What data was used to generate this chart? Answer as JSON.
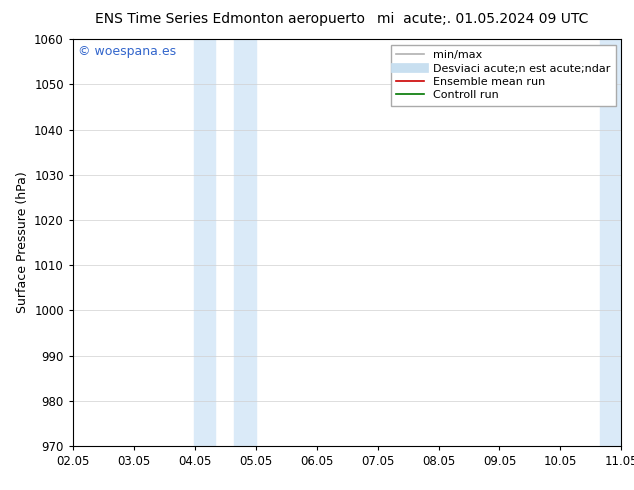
{
  "title_left": "ENS Time Series Edmonton aeropuerto",
  "title_right": "mi  acute;. 01.05.2024 09 UTC",
  "ylabel": "Surface Pressure (hPa)",
  "ylim": [
    970,
    1060
  ],
  "yticks": [
    970,
    980,
    990,
    1000,
    1010,
    1020,
    1030,
    1040,
    1050,
    1060
  ],
  "xtick_labels": [
    "02.05",
    "03.05",
    "04.05",
    "05.05",
    "06.05",
    "07.05",
    "08.05",
    "09.05",
    "10.05",
    "11.05"
  ],
  "n_xticks": 10,
  "xlim": [
    0,
    9
  ],
  "shade_bands": [
    {
      "x_start": 1.98,
      "x_end": 2.33,
      "color": "#daeaf8"
    },
    {
      "x_start": 2.65,
      "x_end": 3.0,
      "color": "#daeaf8"
    },
    {
      "x_start": 8.65,
      "x_end": 9.0,
      "color": "#daeaf8"
    }
  ],
  "watermark_text": "© woespana.es",
  "watermark_color": "#3366cc",
  "legend_items": [
    {
      "label": "min/max",
      "color": "#b0b0b0",
      "lw": 1.2,
      "ls": "-"
    },
    {
      "label": "Desviaci acute;n est acute;ndar",
      "color": "#c8dff0",
      "lw": 7,
      "ls": "-"
    },
    {
      "label": "Ensemble mean run",
      "color": "#cc0000",
      "lw": 1.2,
      "ls": "-"
    },
    {
      "label": "Controll run",
      "color": "#007700",
      "lw": 1.2,
      "ls": "-"
    }
  ],
  "bg_color": "#ffffff",
  "plot_bg_color": "#ffffff",
  "grid_color": "#d0d0d0",
  "title_fontsize": 10,
  "axis_fontsize": 9,
  "tick_fontsize": 8.5,
  "legend_fontsize": 8
}
